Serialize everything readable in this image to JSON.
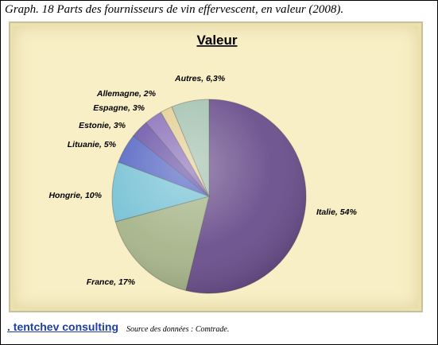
{
  "caption": "Graph. 18 Parts des fournisseurs  de vin effervescent,  en valeur (2008).",
  "footer": {
    "brand": ". tentchev consulting",
    "source": "Source des données : Comtrade."
  },
  "chart_data": {
    "type": "pie",
    "title": "Valeur",
    "series": [
      {
        "label": "Italie, 54%",
        "value": 54,
        "color": "#6b4f8c"
      },
      {
        "label": "France, 17%",
        "value": 17,
        "color": "#a7b58a"
      },
      {
        "label": "Hongrie, 10%",
        "value": 10,
        "color": "#79c3d6"
      },
      {
        "label": "Lituanie, 5%",
        "value": 5,
        "color": "#5868c4"
      },
      {
        "label": "Estonie, 3%",
        "value": 3,
        "color": "#6a55a8"
      },
      {
        "label": "Espagne, 3%",
        "value": 3,
        "color": "#8a70b8"
      },
      {
        "label": "Allemagne, 2%",
        "value": 2,
        "color": "#e4cf95"
      },
      {
        "label": "Autres, 6,3%",
        "value": 6.3,
        "color": "#a4c2b0"
      }
    ]
  }
}
